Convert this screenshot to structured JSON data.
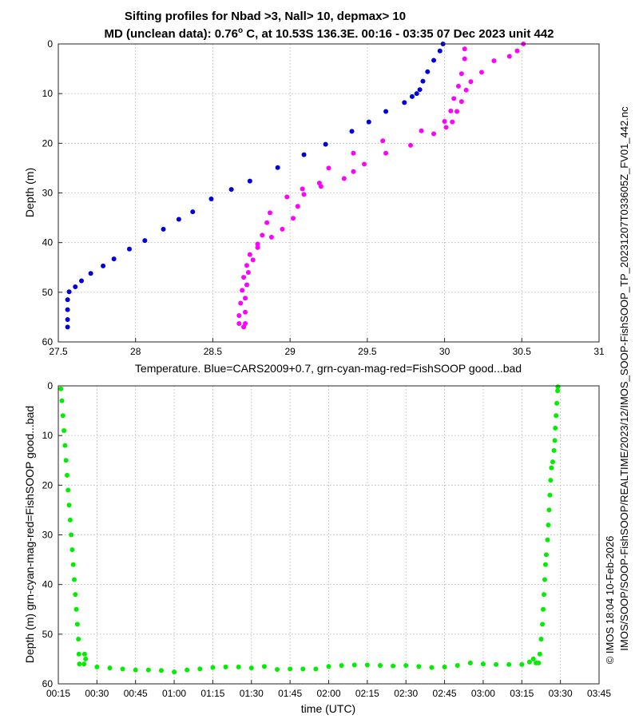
{
  "chart_data": [
    {
      "type": "scatter",
      "title": "Sifting profiles for Nbad >3, Nall> 10, depmax> 10",
      "subtitle": "MD (unclean data): 0.76",
      "subtitle_degree": "o",
      "subtitle_rest": " C, at 10.53S 136.3E. 00:16 - 03:35 07 Dec 2023 unit 442",
      "xlabel": "Temperature. Blue=CARS2009+0.7, grn-cyan-mag-red=FishSOOP good...bad",
      "ylabel": "Depth (m)",
      "xlim": [
        27.5,
        31
      ],
      "ylim": [
        0,
        60
      ],
      "y_reversed": true,
      "grid": true,
      "xticks": [
        27.5,
        28,
        28.5,
        29,
        29.5,
        30,
        30.5,
        31
      ],
      "xtick_labels": [
        "27.5",
        "28",
        "28.5",
        "29",
        "29.5",
        "30",
        "30.5",
        "31"
      ],
      "yticks": [
        0,
        10,
        20,
        30,
        40,
        50,
        60
      ],
      "ytick_labels": [
        "0",
        "10",
        "20",
        "30",
        "40",
        "50",
        "60"
      ],
      "series": [
        {
          "name": "CARS2009+0.7",
          "color": "#0000dd",
          "points": [
            [
              29.99,
              0
            ],
            [
              29.97,
              1.4
            ],
            [
              29.93,
              3.3
            ],
            [
              29.89,
              5.6
            ],
            [
              29.86,
              7.5
            ],
            [
              29.84,
              9.2
            ],
            [
              29.82,
              10.0
            ],
            [
              29.79,
              10.6
            ],
            [
              29.74,
              11.8
            ],
            [
              29.62,
              13.6
            ],
            [
              29.51,
              15.7
            ],
            [
              29.4,
              17.6
            ],
            [
              29.23,
              20.2
            ],
            [
              29.09,
              22.3
            ],
            [
              28.92,
              24.9
            ],
            [
              28.74,
              27.6
            ],
            [
              28.62,
              29.3
            ],
            [
              28.49,
              31.2
            ],
            [
              28.37,
              33.8
            ],
            [
              28.28,
              35.3
            ],
            [
              28.18,
              37.3
            ],
            [
              28.06,
              39.6
            ],
            [
              27.96,
              41.3
            ],
            [
              27.86,
              43.3
            ],
            [
              27.79,
              44.7
            ],
            [
              27.71,
              46.2
            ],
            [
              27.65,
              47.7
            ],
            [
              27.61,
              48.9
            ],
            [
              27.57,
              49.9
            ],
            [
              27.56,
              51.5
            ],
            [
              27.56,
              53.5
            ],
            [
              27.56,
              55.5
            ],
            [
              27.56,
              57.0
            ]
          ]
        },
        {
          "name": "FishSOOP bad (magenta)",
          "color": "#ff00ff",
          "points": [
            [
              30.51,
              0
            ],
            [
              30.47,
              1.4
            ],
            [
              30.42,
              2.5
            ],
            [
              30.32,
              3.4
            ],
            [
              30.24,
              5.7
            ],
            [
              30.17,
              7.6
            ],
            [
              30.14,
              9.3
            ],
            [
              30.11,
              11.6
            ],
            [
              30.08,
              13.6
            ],
            [
              30.05,
              15.7
            ],
            [
              30.01,
              16.8
            ],
            [
              29.93,
              18.1
            ],
            [
              29.78,
              20.4
            ],
            [
              29.62,
              22.0
            ],
            [
              29.48,
              24.2
            ],
            [
              29.41,
              25.7
            ],
            [
              29.35,
              27.1
            ],
            [
              29.2,
              28.7
            ],
            [
              29.09,
              30.3
            ],
            [
              29.05,
              32.7
            ],
            [
              29.02,
              35.1
            ],
            [
              28.95,
              37.3
            ],
            [
              28.88,
              38.9
            ],
            [
              28.79,
              40.3
            ],
            [
              28.74,
              42.4
            ],
            [
              28.72,
              44.6
            ],
            [
              28.7,
              47.0
            ],
            [
              28.69,
              49.6
            ],
            [
              28.68,
              52.2
            ],
            [
              28.67,
              54.7
            ],
            [
              28.67,
              56.3
            ],
            [
              28.7,
              57.0
            ],
            [
              28.71,
              56.3
            ],
            [
              28.71,
              54.0
            ],
            [
              28.71,
              51.2
            ],
            [
              28.72,
              48.5
            ],
            [
              28.73,
              46.0
            ],
            [
              28.76,
              43.5
            ],
            [
              28.79,
              41.0
            ],
            [
              28.82,
              38.5
            ],
            [
              28.85,
              36.0
            ],
            [
              28.87,
              34.0
            ],
            [
              28.98,
              30.8
            ],
            [
              29.08,
              29.2
            ],
            [
              29.19,
              28.0
            ],
            [
              29.25,
              25.0
            ],
            [
              29.41,
              22.0
            ],
            [
              29.6,
              19.5
            ],
            [
              29.85,
              17.5
            ],
            [
              30.0,
              15.6
            ],
            [
              30.04,
              13.5
            ],
            [
              30.06,
              11.0
            ],
            [
              30.09,
              8.5
            ],
            [
              30.11,
              6.0
            ],
            [
              30.13,
              3.0
            ],
            [
              30.13,
              1.0
            ]
          ]
        }
      ]
    },
    {
      "type": "scatter",
      "xlabel": "time (UTC)",
      "ylabel": "Depth (m) grn-cyan-mag-red=FishSOOP good...bad",
      "xlim_minutes": [
        15,
        225
      ],
      "ylim": [
        0,
        60
      ],
      "y_reversed": true,
      "grid": true,
      "xtick_minutes": [
        15,
        30,
        45,
        60,
        75,
        90,
        105,
        120,
        135,
        150,
        165,
        180,
        195,
        210,
        225
      ],
      "xtick_labels": [
        "00:15",
        "00:30",
        "00:45",
        "01:00",
        "01:15",
        "01:30",
        "01:45",
        "02:00",
        "02:15",
        "02:30",
        "02:45",
        "03:00",
        "03:15",
        "03:30",
        "03:45"
      ],
      "yticks": [
        0,
        10,
        20,
        30,
        40,
        50,
        60
      ],
      "ytick_labels": [
        "0",
        "10",
        "20",
        "30",
        "40",
        "50",
        "60"
      ],
      "series": [
        {
          "name": "FishSOOP good (green)",
          "color": "#00ee00",
          "points_minutes_depth": [
            [
              16.0,
              0.6
            ],
            [
              16.4,
              3.0
            ],
            [
              16.8,
              6.0
            ],
            [
              17.2,
              9.0
            ],
            [
              17.6,
              12.0
            ],
            [
              18.0,
              15.0
            ],
            [
              18.4,
              18.0
            ],
            [
              18.8,
              21.0
            ],
            [
              19.2,
              24.0
            ],
            [
              19.6,
              27.0
            ],
            [
              20.0,
              30.0
            ],
            [
              20.4,
              33.0
            ],
            [
              20.8,
              36.0
            ],
            [
              21.2,
              39.0
            ],
            [
              21.6,
              42.0
            ],
            [
              22.0,
              45.0
            ],
            [
              22.4,
              48.0
            ],
            [
              22.8,
              51.0
            ],
            [
              23.0,
              54.0
            ],
            [
              23.2,
              56.0
            ],
            [
              25.0,
              56.0
            ],
            [
              25.2,
              54.0
            ],
            [
              25.6,
              55.0
            ],
            [
              30.0,
              56.6
            ],
            [
              35.0,
              56.8
            ],
            [
              40.0,
              57.0
            ],
            [
              45.0,
              57.2
            ],
            [
              50.0,
              57.2
            ],
            [
              55.0,
              57.3
            ],
            [
              60.0,
              57.6
            ],
            [
              65.0,
              57.2
            ],
            [
              70.0,
              57.0
            ],
            [
              75.0,
              56.7
            ],
            [
              80.0,
              56.6
            ],
            [
              85.0,
              56.6
            ],
            [
              90.0,
              56.8
            ],
            [
              95.0,
              56.5
            ],
            [
              100.0,
              57.1
            ],
            [
              105.0,
              57.0
            ],
            [
              110.0,
              57.0
            ],
            [
              115.0,
              57.0
            ],
            [
              120.0,
              56.5
            ],
            [
              125.0,
              56.3
            ],
            [
              130.0,
              56.2
            ],
            [
              135.0,
              56.2
            ],
            [
              140.0,
              56.3
            ],
            [
              145.0,
              56.4
            ],
            [
              150.0,
              56.3
            ],
            [
              155.0,
              56.5
            ],
            [
              160.0,
              56.7
            ],
            [
              165.0,
              56.6
            ],
            [
              170.0,
              56.3
            ],
            [
              175.0,
              55.8
            ],
            [
              180.0,
              56.0
            ],
            [
              185.0,
              56.1
            ],
            [
              190.0,
              56.1
            ],
            [
              195.0,
              56.1
            ],
            [
              198.0,
              55.6
            ],
            [
              199.5,
              55.0
            ],
            [
              200.5,
              55.8
            ],
            [
              201.5,
              55.8
            ],
            [
              202.0,
              54.0
            ],
            [
              202.5,
              51.0
            ],
            [
              203.0,
              48.0
            ],
            [
              203.3,
              45.0
            ],
            [
              203.6,
              42.0
            ],
            [
              203.9,
              39.0
            ],
            [
              204.2,
              36.0
            ],
            [
              204.5,
              34.0
            ],
            [
              205.0,
              31.0
            ],
            [
              205.3,
              28.0
            ],
            [
              205.6,
              25.0
            ],
            [
              205.9,
              22.0
            ],
            [
              206.2,
              19.0
            ],
            [
              206.5,
              16.5
            ],
            [
              207.0,
              15.3
            ],
            [
              207.5,
              13.0
            ],
            [
              207.8,
              11.0
            ],
            [
              208.0,
              8.5
            ],
            [
              208.3,
              6.0
            ],
            [
              208.6,
              3.5
            ],
            [
              208.9,
              1.0
            ],
            [
              209.0,
              0.2
            ]
          ]
        }
      ]
    }
  ],
  "side_text": {
    "file_path": "IMOS_SOOP-FishSOOP_TP_20231207T033605Z_FV01_442.nc",
    "dir_line1": "IMOS/SOOP/SOOP-FishSOOP/REALTIME/2023/12/",
    "credit": "© IMOS 18:04 10-Feb-2026"
  }
}
